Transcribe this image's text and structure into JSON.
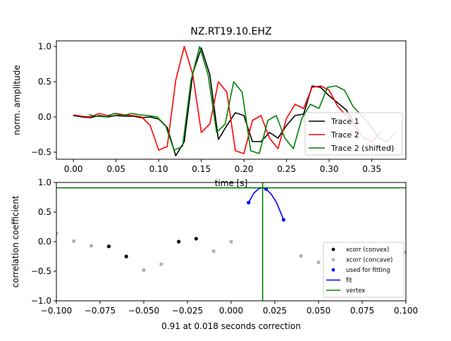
{
  "chart_data": [
    {
      "type": "line",
      "title": "NZ.RT19.10.EHZ",
      "xlabel": "time [s]",
      "ylabel": "norm. amplitude",
      "xlim": [
        -0.02,
        0.39
      ],
      "ylim": [
        -0.6,
        1.08
      ],
      "xticks": [
        0.0,
        0.05,
        0.1,
        0.15,
        0.2,
        0.25,
        0.3,
        0.35
      ],
      "xtick_labels": [
        "0.00",
        "0.05",
        "0.10",
        "0.15",
        "0.20",
        "0.25",
        "0.30",
        "0.35"
      ],
      "yticks": [
        -0.5,
        0.0,
        0.5,
        1.0
      ],
      "ytick_labels": [
        "−0.5",
        "0.0",
        "0.5",
        "1.0"
      ],
      "legend_position": "lower-right",
      "series": [
        {
          "name": "Trace 1",
          "color": "#000000",
          "x": [
            0.0,
            0.01,
            0.02,
            0.03,
            0.04,
            0.05,
            0.06,
            0.07,
            0.08,
            0.09,
            0.1,
            0.11,
            0.12,
            0.13,
            0.14,
            0.15,
            0.16,
            0.17,
            0.18,
            0.19,
            0.2,
            0.21,
            0.22,
            0.23,
            0.24,
            0.25,
            0.26,
            0.27,
            0.28,
            0.29,
            0.3,
            0.31,
            0.32,
            0.33
          ],
          "values": [
            0.02,
            0.0,
            -0.01,
            0.02,
            0.0,
            0.02,
            0.01,
            0.01,
            -0.01,
            0.0,
            -0.03,
            -0.15,
            -0.55,
            -0.35,
            0.62,
            0.98,
            0.6,
            -0.32,
            -0.12,
            0.06,
            0.02,
            -0.35,
            -0.35,
            -0.22,
            -0.3,
            -0.12,
            0.02,
            0.04,
            0.44,
            0.42,
            0.3,
            0.2,
            0.1,
            -0.1
          ]
        },
        {
          "name": "Trace 2",
          "color": "#ff0000",
          "x": [
            0.0,
            0.01,
            0.02,
            0.03,
            0.04,
            0.05,
            0.06,
            0.07,
            0.08,
            0.09,
            0.1,
            0.11,
            0.12,
            0.13,
            0.14,
            0.15,
            0.16,
            0.17,
            0.18,
            0.19,
            0.2,
            0.21,
            0.22,
            0.23,
            0.24,
            0.25,
            0.26,
            0.27,
            0.28,
            0.29,
            0.3,
            0.31,
            0.32,
            0.33,
            0.34,
            0.35,
            0.36
          ],
          "values": [
            0.03,
            0.01,
            0.0,
            0.05,
            0.02,
            0.05,
            0.03,
            0.02,
            0.0,
            -0.12,
            -0.47,
            -0.42,
            0.52,
            1.0,
            0.6,
            -0.22,
            -0.1,
            0.5,
            0.35,
            -0.48,
            -0.52,
            -0.05,
            0.02,
            -0.3,
            -0.45,
            -0.02,
            0.18,
            0.12,
            0.42,
            0.44,
            0.38,
            0.15,
            0.02,
            -0.12,
            -0.3,
            -0.35,
            -0.22
          ]
        },
        {
          "name": "Trace 2 (shifted)",
          "color": "#008000",
          "x": [
            0.018,
            0.028,
            0.038,
            0.048,
            0.058,
            0.068,
            0.078,
            0.088,
            0.098,
            0.108,
            0.118,
            0.128,
            0.138,
            0.148,
            0.158,
            0.168,
            0.178,
            0.188,
            0.198,
            0.208,
            0.218,
            0.228,
            0.238,
            0.248,
            0.258,
            0.268,
            0.278,
            0.288,
            0.298,
            0.308,
            0.318,
            0.328,
            0.338,
            0.348,
            0.358,
            0.368,
            0.378
          ],
          "values": [
            0.03,
            0.01,
            0.0,
            0.05,
            0.02,
            0.05,
            0.03,
            0.02,
            0.0,
            -0.12,
            -0.47,
            -0.42,
            0.52,
            1.0,
            0.6,
            -0.22,
            -0.1,
            0.5,
            0.35,
            -0.48,
            -0.52,
            -0.05,
            0.02,
            -0.3,
            -0.45,
            -0.02,
            0.18,
            0.12,
            0.42,
            0.44,
            0.38,
            0.15,
            0.02,
            -0.12,
            -0.3,
            -0.35,
            -0.22
          ]
        }
      ]
    },
    {
      "type": "scatter",
      "title": "",
      "xlabel": "0.91 at 0.018 seconds correction",
      "ylabel": "correlation coefficient",
      "xlim": [
        -0.1,
        0.1
      ],
      "ylim": [
        -1.0,
        1.0
      ],
      "xticks": [
        -0.1,
        -0.075,
        -0.05,
        -0.025,
        0.0,
        0.025,
        0.05,
        0.075,
        0.1
      ],
      "xtick_labels": [
        "−0.100",
        "−0.075",
        "−0.050",
        "−0.025",
        "0.000",
        "0.025",
        "0.050",
        "0.075",
        "0.100"
      ],
      "yticks": [
        -1.0,
        -0.5,
        0.0,
        0.5,
        1.0
      ],
      "ytick_labels": [
        "−1.0",
        "−0.5",
        "0.0",
        "0.5",
        "1.0"
      ],
      "legend_position": "lower-right",
      "series": [
        {
          "name": "xcorr (convex)",
          "color": "#000000",
          "marker": "point",
          "x": [
            -0.07,
            -0.06,
            -0.03,
            -0.02
          ],
          "values": [
            -0.08,
            -0.25,
            0.0,
            0.05
          ]
        },
        {
          "name": "xcorr (concave)",
          "color": "#b0b0b0",
          "marker": "point",
          "x": [
            -0.1,
            -0.09,
            -0.08,
            -0.05,
            -0.04,
            -0.01,
            0.0,
            0.04,
            0.05,
            0.1
          ],
          "values": [
            0.14,
            0.01,
            -0.07,
            -0.48,
            -0.38,
            -0.16,
            0.0,
            -0.24,
            -0.35,
            -0.18
          ]
        },
        {
          "name": "used for fitting",
          "color": "#0000ff",
          "marker": "point",
          "x": [
            0.01,
            0.02,
            0.03
          ],
          "values": [
            0.66,
            0.89,
            0.37
          ]
        },
        {
          "name": "fit",
          "color": "#0000ff",
          "marker": "line",
          "x": [
            0.01,
            0.013,
            0.016,
            0.018,
            0.02,
            0.023,
            0.026,
            0.03
          ],
          "values": [
            0.66,
            0.82,
            0.9,
            0.91,
            0.89,
            0.8,
            0.66,
            0.37
          ]
        },
        {
          "name": "vertex",
          "color": "#008000",
          "marker": "crosshair",
          "x": [
            0.018
          ],
          "values": [
            0.91
          ]
        }
      ]
    }
  ]
}
